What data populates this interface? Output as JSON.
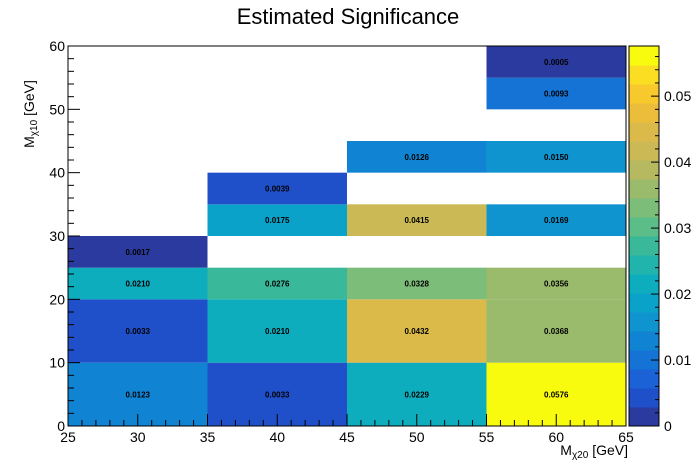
{
  "chart_data": {
    "type": "heatmap",
    "title": "Estimated Significance",
    "xlabel": {
      "main": "M",
      "sub": "χ20",
      "unit": " [GeV]"
    },
    "ylabel": {
      "main": "M",
      "sub": "χ10",
      "unit": " [GeV]"
    },
    "xlim": [
      25,
      65
    ],
    "ylim": [
      0,
      60
    ],
    "x_major_ticks": [
      25,
      30,
      35,
      40,
      45,
      50,
      55,
      60,
      65
    ],
    "y_major_ticks": [
      0,
      10,
      20,
      30,
      40,
      50,
      60
    ],
    "colorbar": {
      "min": 0,
      "max": 0.0576,
      "ticks": [
        0,
        0.01,
        0.02,
        0.03,
        0.04,
        0.05
      ],
      "tick_labels": [
        "0",
        "0.01",
        "0.02",
        "0.03",
        "0.04",
        "0.05"
      ]
    },
    "cells": [
      {
        "x0": 25,
        "x1": 35,
        "y0": 0,
        "y1": 10,
        "value": 0.0123,
        "label": "0.0123"
      },
      {
        "x0": 35,
        "x1": 45,
        "y0": 0,
        "y1": 10,
        "value": 0.0033,
        "label": "0.0033"
      },
      {
        "x0": 45,
        "x1": 55,
        "y0": 0,
        "y1": 10,
        "value": 0.0229,
        "label": "0.0229"
      },
      {
        "x0": 55,
        "x1": 65,
        "y0": 0,
        "y1": 10,
        "value": 0.0576,
        "label": "0.0576"
      },
      {
        "x0": 25,
        "x1": 35,
        "y0": 10,
        "y1": 20,
        "value": 0.0033,
        "label": "0.0033"
      },
      {
        "x0": 35,
        "x1": 45,
        "y0": 10,
        "y1": 20,
        "value": 0.021,
        "label": "0.0210"
      },
      {
        "x0": 45,
        "x1": 55,
        "y0": 10,
        "y1": 20,
        "value": 0.0432,
        "label": "0.0432"
      },
      {
        "x0": 55,
        "x1": 65,
        "y0": 10,
        "y1": 20,
        "value": 0.0368,
        "label": "0.0368"
      },
      {
        "x0": 25,
        "x1": 35,
        "y0": 20,
        "y1": 25,
        "value": 0.021,
        "label": "0.0210"
      },
      {
        "x0": 35,
        "x1": 45,
        "y0": 20,
        "y1": 25,
        "value": 0.0276,
        "label": "0.0276"
      },
      {
        "x0": 45,
        "x1": 55,
        "y0": 20,
        "y1": 25,
        "value": 0.0328,
        "label": "0.0328"
      },
      {
        "x0": 55,
        "x1": 65,
        "y0": 20,
        "y1": 25,
        "value": 0.0356,
        "label": "0.0356"
      },
      {
        "x0": 25,
        "x1": 35,
        "y0": 25,
        "y1": 30,
        "value": 0.0017,
        "label": "0.0017"
      },
      {
        "x0": 35,
        "x1": 45,
        "y0": 30,
        "y1": 35,
        "value": 0.0175,
        "label": "0.0175"
      },
      {
        "x0": 45,
        "x1": 55,
        "y0": 30,
        "y1": 35,
        "value": 0.0415,
        "label": "0.0415"
      },
      {
        "x0": 55,
        "x1": 65,
        "y0": 30,
        "y1": 35,
        "value": 0.0169,
        "label": "0.0169"
      },
      {
        "x0": 35,
        "x1": 45,
        "y0": 35,
        "y1": 40,
        "value": 0.0039,
        "label": "0.0039"
      },
      {
        "x0": 45,
        "x1": 55,
        "y0": 40,
        "y1": 45,
        "value": 0.0126,
        "label": "0.0126"
      },
      {
        "x0": 55,
        "x1": 65,
        "y0": 40,
        "y1": 45,
        "value": 0.015,
        "label": "0.0150"
      },
      {
        "x0": 55,
        "x1": 65,
        "y0": 50,
        "y1": 55,
        "value": 0.0093,
        "label": "0.0093"
      },
      {
        "x0": 55,
        "x1": 65,
        "y0": 55,
        "y1": 60,
        "value": 0.0005,
        "label": "0.0005"
      }
    ],
    "palette": [
      "#2b3a9e",
      "#1f4fc9",
      "#1a62d6",
      "#1473d4",
      "#1183d3",
      "#0f94cf",
      "#0aa2c9",
      "#0eadbe",
      "#21b4ad",
      "#3ab99a",
      "#5bbd88",
      "#7dbd7a",
      "#9abb6c",
      "#b6b95f",
      "#cbb955",
      "#dcba4a",
      "#ecbd3a",
      "#f8c92d",
      "#fbdd22",
      "#f9fb0e"
    ],
    "grid": false,
    "legend": "none"
  }
}
